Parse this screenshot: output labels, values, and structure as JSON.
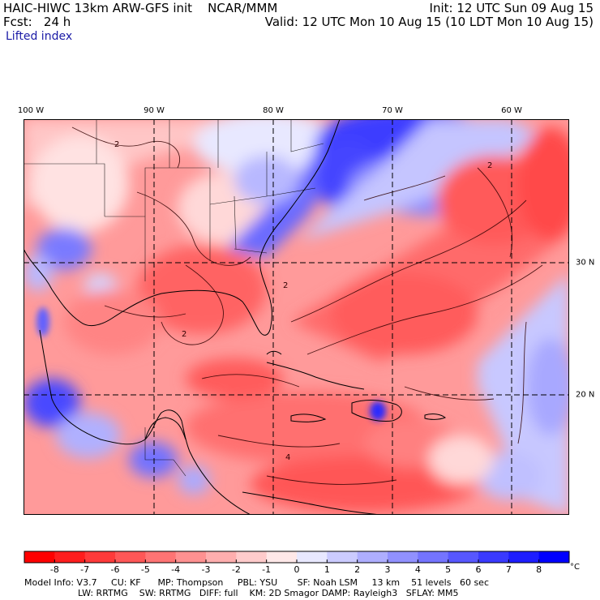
{
  "header": {
    "title": "HAIC-HIWC 13km ARW-GFS init    NCAR/MMM",
    "forecast": "Fcst:   24 h",
    "field": "Lifted index",
    "init": "Init: 12 UTC Sun 09 Aug 15",
    "valid": "Valid: 12 UTC Mon 10 Aug 15 (10 LDT Mon 10 Aug 15)"
  },
  "map": {
    "longitude_labels": [
      "100 W",
      "90 W",
      "80 W",
      "70 W",
      "60 W"
    ],
    "latitude_labels": [
      "30 N",
      "20 N"
    ],
    "contour_labels": [
      "2",
      "2",
      "2",
      "4",
      "2"
    ]
  },
  "colorbar": {
    "tick_labels": [
      "-8",
      "-7",
      "-6",
      "-5",
      "-4",
      "-3",
      "-2",
      "-1",
      "0",
      "1",
      "2",
      "3",
      "4",
      "5",
      "6",
      "7",
      "8"
    ],
    "unit": "°C",
    "colors": [
      "#ff0000",
      "#ff1d1d",
      "#ff3a3a",
      "#ff5757",
      "#ff7474",
      "#ff9191",
      "#ffaeae",
      "#ffcbcb",
      "#ffe8e8",
      "#e8e8ff",
      "#cbcbff",
      "#aeaeff",
      "#9191ff",
      "#7474ff",
      "#5757ff",
      "#3a3aff",
      "#1d1dff",
      "#0000ff"
    ]
  },
  "model_info": {
    "line1": "Model Info: V3.7     CU: KF      MP: Thompson     PBL: YSU       SF: Noah LSM     13 km    51 levels   60 sec",
    "line2": "LW: RRTMG    SW: RRTMG   DIFF: full    KM: 2D Smagor DAMP: Rayleigh3   SFLAY: MM5"
  }
}
